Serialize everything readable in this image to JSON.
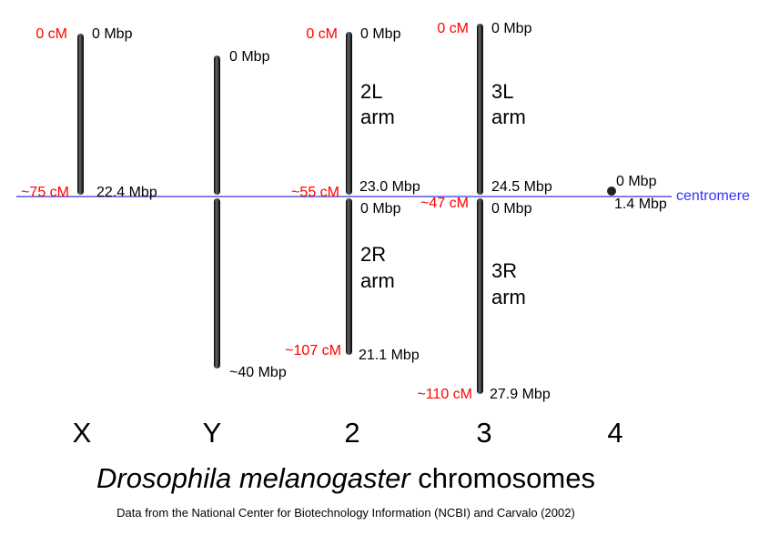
{
  "chromosomes": [
    {
      "name": "X",
      "top_cm": "0 cM",
      "top_mbp": "0 Mbp",
      "centromere_cm": "~75 cM",
      "centromere_mbp": "22.4 Mbp"
    },
    {
      "name": "Y",
      "top_mbp": "0 Mbp",
      "bottom_mbp": "~40 Mbp"
    },
    {
      "name": "2",
      "top_cm": "0 cM",
      "top_mbp": "0 Mbp",
      "left_arm": [
        "2L",
        "arm"
      ],
      "centromere_cm": "~55 cM",
      "left_end_mbp": "23.0 Mbp",
      "right_start_mbp": "0 Mbp",
      "right_arm": [
        "2R",
        "arm"
      ],
      "bottom_cm": "~107 cM",
      "bottom_mbp": "21.1 Mbp"
    },
    {
      "name": "3",
      "top_cm": "0 cM",
      "top_mbp": "0 Mbp",
      "left_arm": [
        "3L",
        "arm"
      ],
      "left_end_mbp": "24.5 Mbp",
      "centromere_cm": "~47 cM",
      "right_start_mbp": "0 Mbp",
      "right_arm": [
        "3R",
        "arm"
      ],
      "bottom_cm": "~110 cM",
      "bottom_mbp": "27.9 Mbp"
    },
    {
      "name": "4",
      "top_mbp": "0 Mbp",
      "bottom_mbp": "1.4 Mbp"
    }
  ],
  "centromere_label": "centromere",
  "title": {
    "species": "Drosophila melanogaster",
    "rest": "chromosomes"
  },
  "footnote": "Data from the National Center for Biotechnology Information (NCBI) and Carvalo (2002)"
}
